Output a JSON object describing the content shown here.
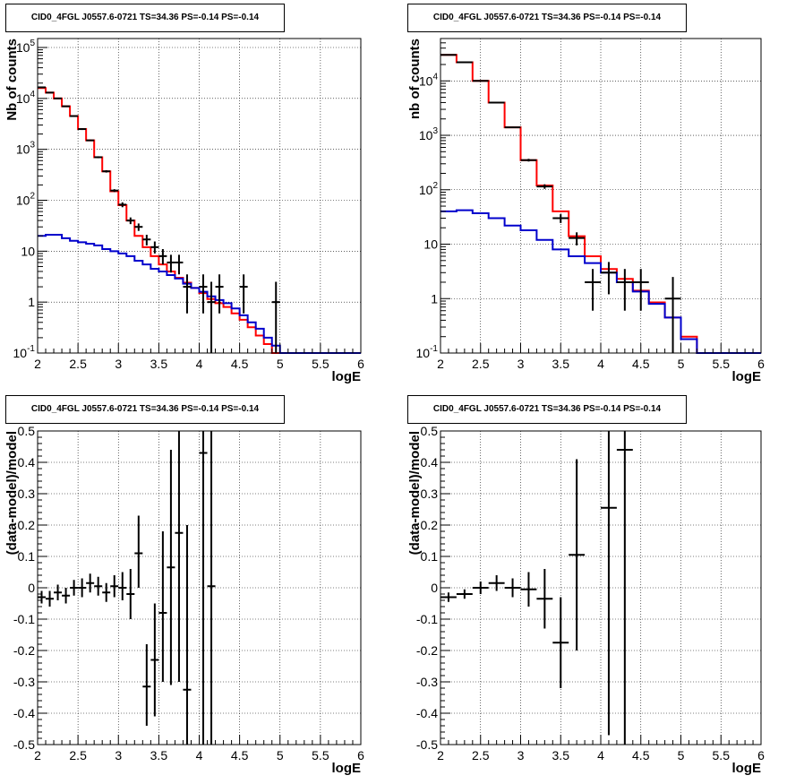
{
  "chart_data": [
    {
      "type": "line",
      "title": "CID0_4FGL J0557.6-0721 TS=34.36 PS=-0.14 PS=-0.14",
      "xlabel": "logE",
      "ylabel": "Nb of counts",
      "xlim": [
        2,
        6
      ],
      "ylim": [
        0.1,
        150000
      ],
      "yscale": "log",
      "grid": true,
      "xticks": [
        2,
        2.5,
        3,
        3.5,
        4,
        4.5,
        5,
        5.5,
        6
      ],
      "yticks": [
        0.1,
        1,
        10,
        100,
        1000,
        10000,
        100000
      ],
      "ytick_labels": [
        "10^-1",
        "1",
        "10",
        "10^2",
        "10^3",
        "10^4",
        "10^5"
      ],
      "series": [
        {
          "name": "",
          "color": "#ff0000",
          "kind": "histogram",
          "edges": [
            2,
            2.1,
            2.2,
            2.3,
            2.4,
            2.5,
            2.6,
            2.7,
            2.8,
            2.9,
            3,
            3.1,
            3.2,
            3.3,
            3.4,
            3.5,
            3.6,
            3.7,
            3.8,
            3.9,
            4,
            4.1,
            4.2,
            4.3,
            4.4,
            4.5,
            4.6,
            4.7,
            4.8,
            4.9,
            5,
            5.1,
            5.2,
            5.3,
            5.4,
            5.5,
            5.6,
            5.7,
            5.8,
            5.9,
            6
          ],
          "values": [
            16000,
            13000,
            10000,
            7000,
            4500,
            2500,
            1500,
            700,
            370,
            150,
            80,
            40,
            20,
            12,
            8,
            5.5,
            4,
            3,
            2.4,
            1.9,
            1.5,
            1.15,
            0.95,
            0.8,
            0.6,
            0.45,
            0.32,
            0.22,
            0.15,
            0.1,
            0.1,
            0.1,
            0.1,
            0.1,
            0.1,
            0.1,
            0.1,
            0.1,
            0.1,
            0.1
          ]
        },
        {
          "name": "",
          "color": "#0000cc",
          "kind": "histogram",
          "edges": [
            2,
            2.1,
            2.2,
            2.3,
            2.4,
            2.5,
            2.6,
            2.7,
            2.8,
            2.9,
            3,
            3.1,
            3.2,
            3.3,
            3.4,
            3.5,
            3.6,
            3.7,
            3.8,
            3.9,
            4,
            4.1,
            4.2,
            4.3,
            4.4,
            4.5,
            4.6,
            4.7,
            4.8,
            4.9,
            5,
            5.1,
            5.2,
            5.3,
            5.4,
            5.5,
            5.6,
            5.7,
            5.8,
            5.9,
            6
          ],
          "values": [
            20,
            21,
            21,
            18,
            16,
            15,
            14,
            13,
            11,
            10,
            9,
            8,
            6.5,
            5.5,
            4.5,
            4,
            3.4,
            2.9,
            2.3,
            1.9,
            1.6,
            1.3,
            1.1,
            0.95,
            0.75,
            0.55,
            0.4,
            0.3,
            0.2,
            0.14,
            0.1,
            0.1,
            0.1,
            0.1,
            0.1,
            0.1,
            0.1,
            0.1,
            0.1,
            0.1
          ]
        },
        {
          "name": "",
          "color": "#000000",
          "kind": "errorbar",
          "points": [
            {
              "x": 2.05,
              "y": 16500,
              "xerr": 0.05,
              "ylo": 16200,
              "yhi": 16800
            },
            {
              "x": 2.15,
              "y": 13000,
              "xerr": 0.05,
              "ylo": 12700,
              "yhi": 13300
            },
            {
              "x": 2.25,
              "y": 10000,
              "xerr": 0.05,
              "ylo": 9800,
              "yhi": 10200
            },
            {
              "x": 2.35,
              "y": 7000,
              "xerr": 0.05,
              "ylo": 6850,
              "yhi": 7150
            },
            {
              "x": 2.45,
              "y": 4500,
              "xerr": 0.05,
              "ylo": 4400,
              "yhi": 4600
            },
            {
              "x": 2.55,
              "y": 2500,
              "xerr": 0.05,
              "ylo": 2400,
              "yhi": 2600
            },
            {
              "x": 2.65,
              "y": 1500,
              "xerr": 0.05,
              "ylo": 1450,
              "yhi": 1550
            },
            {
              "x": 2.75,
              "y": 700,
              "xerr": 0.05,
              "ylo": 670,
              "yhi": 730
            },
            {
              "x": 2.85,
              "y": 370,
              "xerr": 0.05,
              "ylo": 350,
              "yhi": 390
            },
            {
              "x": 2.95,
              "y": 155,
              "xerr": 0.05,
              "ylo": 145,
              "yhi": 165
            },
            {
              "x": 3.05,
              "y": 82,
              "xerr": 0.05,
              "ylo": 73,
              "yhi": 91
            },
            {
              "x": 3.15,
              "y": 40,
              "xerr": 0.05,
              "ylo": 34,
              "yhi": 46
            },
            {
              "x": 3.25,
              "y": 30,
              "xerr": 0.05,
              "ylo": 25,
              "yhi": 35
            },
            {
              "x": 3.35,
              "y": 17,
              "xerr": 0.05,
              "ylo": 13,
              "yhi": 21
            },
            {
              "x": 3.45,
              "y": 12,
              "xerr": 0.05,
              "ylo": 9,
              "yhi": 15.5
            },
            {
              "x": 3.55,
              "y": 8,
              "xerr": 0.05,
              "ylo": 5.5,
              "yhi": 11
            },
            {
              "x": 3.65,
              "y": 6,
              "xerr": 0.05,
              "ylo": 3.8,
              "yhi": 8.5
            },
            {
              "x": 3.75,
              "y": 6,
              "xerr": 0.05,
              "ylo": 3.5,
              "yhi": 8.5
            },
            {
              "x": 3.85,
              "y": 2,
              "xerr": 0.05,
              "ylo": 0.6,
              "yhi": 3.5
            },
            {
              "x": 4.05,
              "y": 2,
              "xerr": 0.05,
              "ylo": 0.6,
              "yhi": 3.5
            },
            {
              "x": 4.15,
              "y": 1,
              "xerr": 0.05,
              "ylo": 0.1,
              "yhi": 2.5
            },
            {
              "x": 4.25,
              "y": 2,
              "xerr": 0.05,
              "ylo": 0.6,
              "yhi": 3.5
            },
            {
              "x": 4.55,
              "y": 2,
              "xerr": 0.05,
              "ylo": 0.6,
              "yhi": 3.5
            },
            {
              "x": 4.95,
              "y": 1,
              "xerr": 0.05,
              "ylo": 0.1,
              "yhi": 2.5
            }
          ]
        }
      ]
    },
    {
      "type": "line",
      "title": "CID0_4FGL J0557.6-0721 TS=34.36 PS=-0.14 PS=-0.14",
      "xlabel": "logE",
      "ylabel": "nb of counts",
      "xlim": [
        2,
        6
      ],
      "ylim": [
        0.1,
        60000
      ],
      "yscale": "log",
      "grid": true,
      "xticks": [
        2,
        2.5,
        3,
        3.5,
        4,
        4.5,
        5,
        5.5,
        6
      ],
      "yticks": [
        0.1,
        1,
        10,
        100,
        1000,
        10000
      ],
      "ytick_labels": [
        "10^-1",
        "1",
        "10",
        "10^2",
        "10^3",
        "10^4"
      ],
      "series": [
        {
          "name": "",
          "color": "#ff0000",
          "kind": "histogram",
          "edges": [
            2,
            2.2,
            2.4,
            2.6,
            2.8,
            3,
            3.2,
            3.4,
            3.6,
            3.8,
            4,
            4.2,
            4.4,
            4.6,
            4.8,
            5,
            5.2,
            5.4,
            5.6,
            5.8,
            6
          ],
          "values": [
            30000,
            22000,
            10000,
            4000,
            1400,
            350,
            120,
            40,
            14,
            6,
            3.5,
            2.3,
            1.4,
            0.85,
            0.45,
            0.2,
            0.1,
            0.1,
            0.1,
            0.1
          ]
        },
        {
          "name": "",
          "color": "#0000cc",
          "kind": "histogram",
          "edges": [
            2,
            2.2,
            2.4,
            2.6,
            2.8,
            3,
            3.2,
            3.4,
            3.6,
            3.8,
            4,
            4.2,
            4.4,
            4.6,
            4.8,
            5,
            5.2,
            5.4,
            5.6,
            5.8,
            6
          ],
          "values": [
            40,
            42,
            37,
            30,
            22,
            18,
            12,
            8,
            6,
            4.5,
            3,
            2,
            1.35,
            0.8,
            0.45,
            0.18,
            0.1,
            0.1,
            0.1,
            0.1
          ]
        },
        {
          "name": "",
          "color": "#000000",
          "kind": "errorbar",
          "points": [
            {
              "x": 2.1,
              "y": 30000,
              "xerr": 0.1,
              "ylo": 29700,
              "yhi": 30300
            },
            {
              "x": 2.3,
              "y": 22000,
              "xerr": 0.1,
              "ylo": 21700,
              "yhi": 22300
            },
            {
              "x": 2.5,
              "y": 10000,
              "xerr": 0.1,
              "ylo": 9800,
              "yhi": 10200
            },
            {
              "x": 2.7,
              "y": 4000,
              "xerr": 0.1,
              "ylo": 3930,
              "yhi": 4070
            },
            {
              "x": 2.9,
              "y": 1400,
              "xerr": 0.1,
              "ylo": 1360,
              "yhi": 1440
            },
            {
              "x": 3.1,
              "y": 350,
              "xerr": 0.1,
              "ylo": 330,
              "yhi": 370
            },
            {
              "x": 3.3,
              "y": 115,
              "xerr": 0.1,
              "ylo": 104,
              "yhi": 126
            },
            {
              "x": 3.5,
              "y": 30,
              "xerr": 0.1,
              "ylo": 24.5,
              "yhi": 35.5
            },
            {
              "x": 3.7,
              "y": 13,
              "xerr": 0.1,
              "ylo": 9.5,
              "yhi": 16.5
            },
            {
              "x": 3.9,
              "y": 2,
              "xerr": 0.1,
              "ylo": 0.6,
              "yhi": 3.5
            },
            {
              "x": 4.1,
              "y": 3,
              "xerr": 0.1,
              "ylo": 1.2,
              "yhi": 4.7
            },
            {
              "x": 4.3,
              "y": 2,
              "xerr": 0.1,
              "ylo": 0.6,
              "yhi": 3.5
            },
            {
              "x": 4.5,
              "y": 2,
              "xerr": 0.1,
              "ylo": 0.6,
              "yhi": 3.5
            },
            {
              "x": 4.9,
              "y": 1,
              "xerr": 0.1,
              "ylo": 0.1,
              "yhi": 2.5
            }
          ]
        }
      ]
    },
    {
      "type": "scatter",
      "title": "CID0_4FGL J0557.6-0721 TS=34.36 PS=-0.14 PS=-0.14",
      "xlabel": "logE",
      "ylabel": "(data-model)/model",
      "xlim": [
        2,
        6
      ],
      "ylim": [
        -0.5,
        0.5
      ],
      "grid": true,
      "xticks": [
        2,
        2.5,
        3,
        3.5,
        4,
        4.5,
        5,
        5.5,
        6
      ],
      "yticks": [
        -0.5,
        -0.4,
        -0.3,
        -0.2,
        -0.1,
        0,
        0.1,
        0.2,
        0.3,
        0.4,
        0.5
      ],
      "series": [
        {
          "name": "",
          "color": "#000000",
          "kind": "errorbar",
          "points": [
            {
              "x": 2.05,
              "y": -0.03,
              "xerr": 0.05,
              "ylo": -0.05,
              "yhi": -0.01
            },
            {
              "x": 2.15,
              "y": -0.035,
              "xerr": 0.05,
              "ylo": -0.06,
              "yhi": -0.01
            },
            {
              "x": 2.25,
              "y": -0.015,
              "xerr": 0.05,
              "ylo": -0.04,
              "yhi": 0.01
            },
            {
              "x": 2.35,
              "y": -0.025,
              "xerr": 0.05,
              "ylo": -0.05,
              "yhi": 0.0
            },
            {
              "x": 2.45,
              "y": 0.0,
              "xerr": 0.05,
              "ylo": -0.025,
              "yhi": 0.025
            },
            {
              "x": 2.55,
              "y": 0.0,
              "xerr": 0.05,
              "ylo": -0.03,
              "yhi": 0.03
            },
            {
              "x": 2.65,
              "y": 0.015,
              "xerr": 0.05,
              "ylo": -0.015,
              "yhi": 0.045
            },
            {
              "x": 2.75,
              "y": 0.005,
              "xerr": 0.05,
              "ylo": -0.025,
              "yhi": 0.035
            },
            {
              "x": 2.85,
              "y": -0.015,
              "xerr": 0.05,
              "ylo": -0.045,
              "yhi": 0.015
            },
            {
              "x": 2.95,
              "y": 0.005,
              "xerr": 0.05,
              "ylo": -0.03,
              "yhi": 0.04
            },
            {
              "x": 3.05,
              "y": 0.0,
              "xerr": 0.05,
              "ylo": -0.04,
              "yhi": 0.05
            },
            {
              "x": 3.15,
              "y": -0.02,
              "xerr": 0.05,
              "ylo": -0.1,
              "yhi": 0.06
            },
            {
              "x": 3.25,
              "y": 0.11,
              "xerr": 0.05,
              "ylo": 0.0,
              "yhi": 0.23
            },
            {
              "x": 3.35,
              "y": -0.315,
              "xerr": 0.05,
              "ylo": -0.44,
              "yhi": -0.18
            },
            {
              "x": 3.45,
              "y": -0.23,
              "xerr": 0.05,
              "ylo": -0.41,
              "yhi": -0.05
            },
            {
              "x": 3.55,
              "y": -0.08,
              "xerr": 0.05,
              "ylo": -0.3,
              "yhi": 0.18
            },
            {
              "x": 3.65,
              "y": 0.065,
              "xerr": 0.05,
              "ylo": -0.31,
              "yhi": 0.44
            },
            {
              "x": 3.75,
              "y": 0.175,
              "xerr": 0.05,
              "ylo": -0.3,
              "yhi": 0.5
            },
            {
              "x": 3.85,
              "y": -0.325,
              "xerr": 0.05,
              "ylo": -0.5,
              "yhi": 0.2
            },
            {
              "x": 4.05,
              "y": 0.43,
              "xerr": 0.05,
              "ylo": -0.5,
              "yhi": 0.5
            },
            {
              "x": 4.15,
              "y": 0.005,
              "xerr": 0.05,
              "ylo": -0.5,
              "yhi": 0.5
            }
          ]
        }
      ]
    },
    {
      "type": "scatter",
      "title": "CID0_4FGL J0557.6-0721 TS=34.36 PS=-0.14 PS=-0.14",
      "xlabel": "logE",
      "ylabel": "(data-model)/model",
      "xlim": [
        2,
        6
      ],
      "ylim": [
        -0.5,
        0.5
      ],
      "grid": true,
      "xticks": [
        2,
        2.5,
        3,
        3.5,
        4,
        4.5,
        5,
        5.5,
        6
      ],
      "yticks": [
        -0.5,
        -0.4,
        -0.3,
        -0.2,
        -0.1,
        0,
        0.1,
        0.2,
        0.3,
        0.4,
        0.5
      ],
      "series": [
        {
          "name": "",
          "color": "#000000",
          "kind": "errorbar",
          "points": [
            {
              "x": 2.1,
              "y": -0.03,
              "xerr": 0.1,
              "ylo": -0.045,
              "yhi": -0.015
            },
            {
              "x": 2.3,
              "y": -0.02,
              "xerr": 0.1,
              "ylo": -0.035,
              "yhi": -0.005
            },
            {
              "x": 2.5,
              "y": 0.0,
              "xerr": 0.1,
              "ylo": -0.02,
              "yhi": 0.02
            },
            {
              "x": 2.7,
              "y": 0.015,
              "xerr": 0.1,
              "ylo": -0.01,
              "yhi": 0.04
            },
            {
              "x": 2.9,
              "y": 0.0,
              "xerr": 0.1,
              "ylo": -0.03,
              "yhi": 0.03
            },
            {
              "x": 3.1,
              "y": -0.005,
              "xerr": 0.1,
              "ylo": -0.06,
              "yhi": 0.05
            },
            {
              "x": 3.3,
              "y": -0.035,
              "xerr": 0.1,
              "ylo": -0.13,
              "yhi": 0.06
            },
            {
              "x": 3.5,
              "y": -0.175,
              "xerr": 0.1,
              "ylo": -0.32,
              "yhi": -0.03
            },
            {
              "x": 3.7,
              "y": 0.105,
              "xerr": 0.1,
              "ylo": -0.2,
              "yhi": 0.41
            },
            {
              "x": 4.1,
              "y": 0.255,
              "xerr": 0.1,
              "ylo": -0.47,
              "yhi": 0.5
            },
            {
              "x": 4.3,
              "y": 0.44,
              "xerr": 0.1,
              "ylo": -0.5,
              "yhi": 0.5
            }
          ]
        }
      ]
    }
  ]
}
